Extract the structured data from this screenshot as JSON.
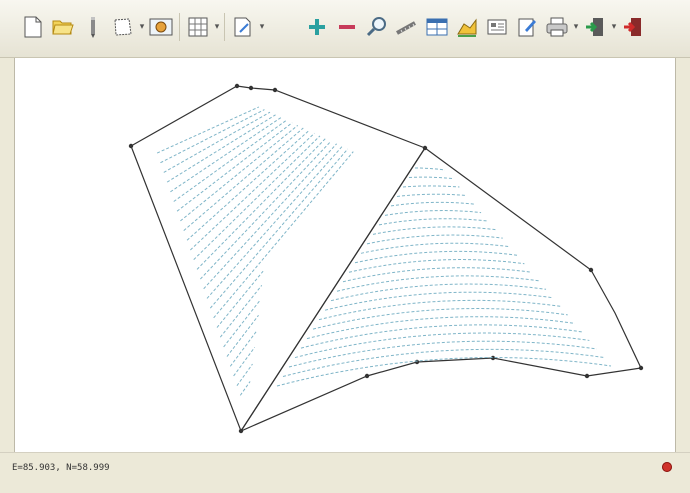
{
  "toolbar": {
    "buttons": [
      {
        "name": "new-file",
        "icon": "new-document-icon",
        "has_dropdown": false
      },
      {
        "name": "open-file",
        "icon": "open-folder-icon",
        "has_dropdown": false
      },
      {
        "name": "pen-tool",
        "icon": "pen-icon",
        "has_dropdown": false
      },
      {
        "name": "select-area",
        "icon": "select-area-icon",
        "has_dropdown": true
      },
      {
        "name": "view-mode",
        "icon": "view-mode-icon",
        "has_dropdown": false
      },
      {
        "name": "grid",
        "icon": "grid-icon",
        "has_dropdown": true
      },
      {
        "name": "export",
        "icon": "export-icon",
        "has_dropdown": true
      },
      {
        "name": "zoom-in",
        "icon": "plus-icon",
        "has_dropdown": false
      },
      {
        "name": "zoom-out",
        "icon": "minus-icon",
        "has_dropdown": false
      },
      {
        "name": "zoom-search",
        "icon": "magnifier-icon",
        "has_dropdown": false
      },
      {
        "name": "measure",
        "icon": "measure-icon",
        "has_dropdown": false
      },
      {
        "name": "table",
        "icon": "table-icon",
        "has_dropdown": false
      },
      {
        "name": "field",
        "icon": "field-icon",
        "has_dropdown": false
      },
      {
        "name": "data",
        "icon": "data-card-icon",
        "has_dropdown": false
      },
      {
        "name": "edit",
        "icon": "edit-icon",
        "has_dropdown": false
      },
      {
        "name": "print",
        "icon": "printer-icon",
        "has_dropdown": true
      },
      {
        "name": "exit",
        "icon": "exit-icon",
        "has_dropdown": true
      },
      {
        "name": "quit",
        "icon": "quit-icon",
        "has_dropdown": false
      }
    ]
  },
  "status": {
    "coordinates": "E=85.903, N=58.999",
    "indicator_color": "#d0322a"
  },
  "colors": {
    "boundary": "#333333",
    "pass_lines": "#7fb5c8",
    "arrow": "#2f3f46"
  }
}
